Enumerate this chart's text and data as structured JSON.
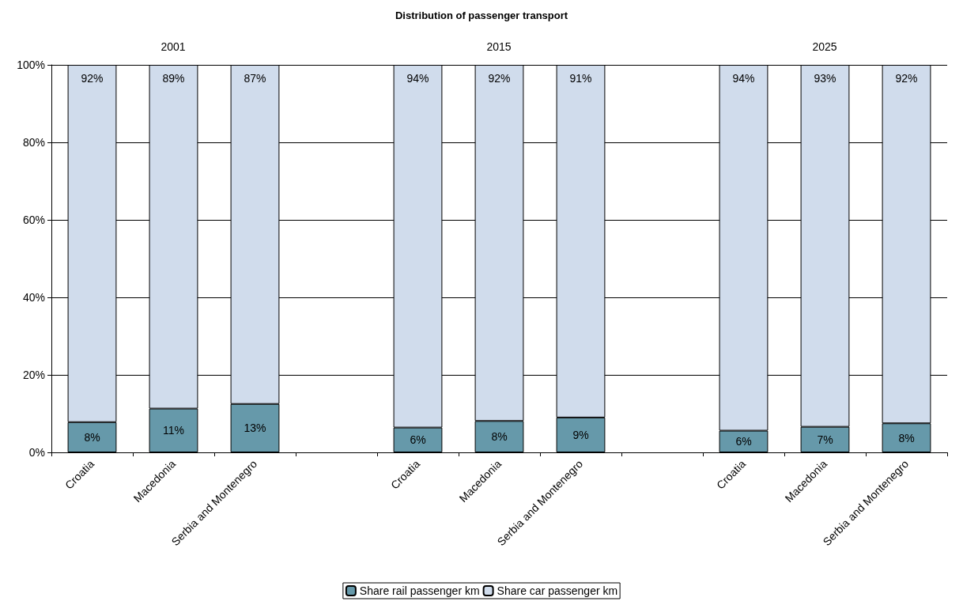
{
  "chart_data": {
    "type": "bar",
    "title": "Distribution of passenger transport",
    "stacked": true,
    "categories": [
      "Croatia",
      "Macedonia",
      "Serbia and Montenegro",
      null,
      "Croatia",
      "Macedonia",
      "Serbia and Montenegro",
      null,
      "Croatia",
      "Macedonia",
      "Serbia and Montenegro"
    ],
    "series": [
      {
        "name": "Share rail passenger km",
        "color": "#6699aa",
        "values": [
          7.8,
          11.3,
          12.5,
          null,
          6.4,
          8.1,
          9.0,
          null,
          5.6,
          6.6,
          7.5
        ],
        "value_labels": [
          "8%",
          "11%",
          "13%",
          null,
          "6%",
          "8%",
          "9%",
          null,
          "6%",
          "7%",
          "8%"
        ]
      },
      {
        "name": "Share car passenger km",
        "color": "#d0dcec",
        "values": [
          92.2,
          88.7,
          87.5,
          null,
          93.6,
          91.9,
          91.0,
          null,
          94.4,
          93.4,
          92.5
        ],
        "value_labels": [
          "92%",
          "89%",
          "87%",
          null,
          "94%",
          "92%",
          "91%",
          null,
          "94%",
          "93%",
          "92%"
        ]
      }
    ],
    "annotations": [
      "2001",
      "2015",
      "2025"
    ],
    "ylim": [
      0,
      100
    ],
    "yticks": [
      {
        "value": 0,
        "label": "0%"
      },
      {
        "value": 20,
        "label": "20%"
      },
      {
        "value": 40,
        "label": "40%"
      },
      {
        "value": 60,
        "label": "60%"
      },
      {
        "value": 80,
        "label": "80%"
      },
      {
        "value": 100,
        "label": "100%"
      }
    ],
    "grid": "y",
    "legend": "bottom"
  }
}
